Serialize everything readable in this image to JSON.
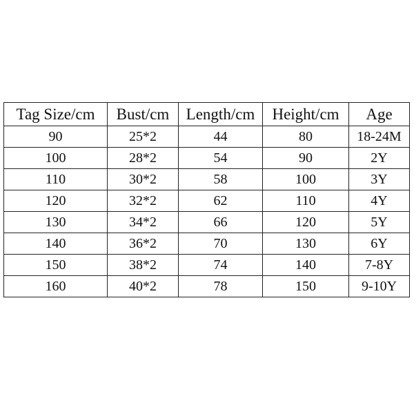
{
  "table": {
    "header": [
      "Tag Size/cm",
      "Bust/cm",
      "Length/cm",
      "Height/cm",
      "Age"
    ],
    "rows": [
      [
        "90",
        "25*2",
        "44",
        "80",
        "18-24M"
      ],
      [
        "100",
        "28*2",
        "54",
        "90",
        "2Y"
      ],
      [
        "110",
        "30*2",
        "58",
        "100",
        "3Y"
      ],
      [
        "120",
        "32*2",
        "62",
        "110",
        "4Y"
      ],
      [
        "130",
        "34*2",
        "66",
        "120",
        "5Y"
      ],
      [
        "140",
        "36*2",
        "70",
        "130",
        "6Y"
      ],
      [
        "150",
        "38*2",
        "74",
        "140",
        "7-8Y"
      ],
      [
        "160",
        "40*2",
        "78",
        "150",
        "9-10Y"
      ]
    ]
  }
}
